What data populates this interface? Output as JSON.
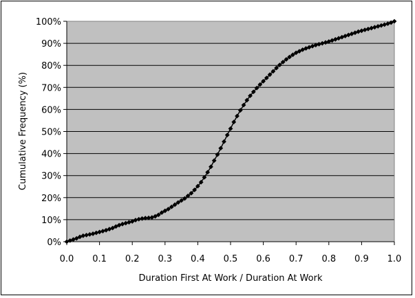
{
  "chart_data": {
    "type": "scatter",
    "title": "",
    "xlabel": "Duration First At Work / Duration At Work",
    "ylabel": "Cumulative Frequency (%)",
    "xlim": [
      0.0,
      1.0
    ],
    "ylim": [
      0,
      100
    ],
    "x_ticks": [
      0.0,
      0.1,
      0.2,
      0.3,
      0.4,
      0.5,
      0.6,
      0.7,
      0.8,
      0.9,
      1.0
    ],
    "x_tick_labels": [
      "0.0",
      "0.1",
      "0.2",
      "0.3",
      "0.4",
      "0.5",
      "0.6",
      "0.7",
      "0.8",
      "0.9",
      "1.0"
    ],
    "y_ticks": [
      0,
      10,
      20,
      30,
      40,
      50,
      60,
      70,
      80,
      90,
      100
    ],
    "y_tick_labels": [
      "0%",
      "10%",
      "20%",
      "30%",
      "40%",
      "50%",
      "60%",
      "70%",
      "80%",
      "90%",
      "100%"
    ],
    "grid": "horizontal",
    "legend": "none",
    "colors": {
      "plot_background": "#c0c0c0",
      "gridline": "#000000",
      "marker": "#000000",
      "line": "#000000"
    },
    "series": [
      {
        "x": [
          0.0,
          0.01,
          0.02,
          0.03,
          0.04,
          0.05,
          0.06,
          0.07,
          0.08,
          0.09,
          0.1,
          0.11,
          0.12,
          0.13,
          0.14,
          0.15,
          0.16,
          0.17,
          0.18,
          0.19,
          0.2,
          0.21,
          0.22,
          0.23,
          0.24,
          0.25,
          0.26,
          0.27,
          0.28,
          0.29,
          0.3,
          0.31,
          0.32,
          0.33,
          0.34,
          0.35,
          0.36,
          0.37,
          0.38,
          0.39,
          0.4,
          0.41,
          0.42,
          0.43,
          0.44,
          0.45,
          0.46,
          0.47,
          0.48,
          0.49,
          0.5,
          0.51,
          0.52,
          0.53,
          0.54,
          0.55,
          0.56,
          0.57,
          0.58,
          0.59,
          0.6,
          0.61,
          0.62,
          0.63,
          0.64,
          0.65,
          0.66,
          0.67,
          0.68,
          0.69,
          0.7,
          0.71,
          0.72,
          0.73,
          0.74,
          0.75,
          0.76,
          0.77,
          0.78,
          0.79,
          0.8,
          0.81,
          0.82,
          0.83,
          0.84,
          0.85,
          0.86,
          0.87,
          0.88,
          0.89,
          0.9,
          0.91,
          0.92,
          0.93,
          0.94,
          0.95,
          0.96,
          0.97,
          0.98,
          0.99,
          1.0
        ],
        "y": [
          0.0,
          0.5,
          1.0,
          1.5,
          2.2,
          2.7,
          3.0,
          3.3,
          3.6,
          4.0,
          4.4,
          4.8,
          5.2,
          5.7,
          6.2,
          6.9,
          7.5,
          8.0,
          8.4,
          8.8,
          9.2,
          9.8,
          10.2,
          10.5,
          10.7,
          10.8,
          11.0,
          11.5,
          12.2,
          13.2,
          14.0,
          14.8,
          15.8,
          16.8,
          17.8,
          18.7,
          19.6,
          20.8,
          22.0,
          23.5,
          25.2,
          27.0,
          29.2,
          31.5,
          34.0,
          36.8,
          39.5,
          42.4,
          45.4,
          48.4,
          51.3,
          54.3,
          57.0,
          59.6,
          62.0,
          64.2,
          66.2,
          68.0,
          69.7,
          71.3,
          72.8,
          74.3,
          75.8,
          77.3,
          78.8,
          80.2,
          81.5,
          82.7,
          83.8,
          84.8,
          85.7,
          86.4,
          87.1,
          87.7,
          88.2,
          88.7,
          89.2,
          89.6,
          90.0,
          90.4,
          90.8,
          91.3,
          91.8,
          92.3,
          92.8,
          93.3,
          93.8,
          94.3,
          94.8,
          95.3,
          95.7,
          96.1,
          96.5,
          96.9,
          97.3,
          97.7,
          98.1,
          98.5,
          98.9,
          99.4,
          100.0
        ]
      }
    ]
  }
}
